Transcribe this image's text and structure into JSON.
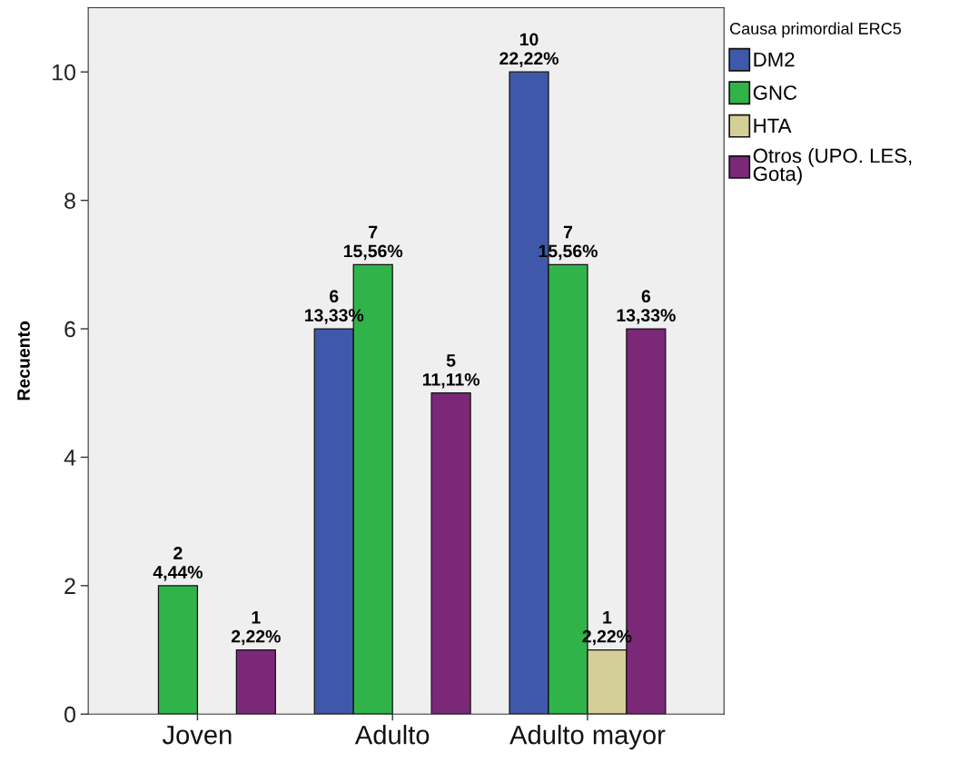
{
  "chart_data": {
    "type": "bar",
    "ylabel": "Recuento",
    "legend_title": "Causa primordial ERC5",
    "categories": [
      "Joven",
      "Adulto",
      "Adulto mayor"
    ],
    "series": [
      {
        "name": "DM2",
        "color": "#3f58a9",
        "values": [
          null,
          6,
          10
        ],
        "value_labels": [
          null,
          "6\n13,33%",
          "10\n22,22%"
        ]
      },
      {
        "name": "GNC",
        "color": "#30b44a",
        "values": [
          2,
          7,
          7
        ],
        "value_labels": [
          "2\n4,44%",
          "7\n15,56%",
          "7\n15,56%"
        ]
      },
      {
        "name": "HTA",
        "color": "#d4cf99",
        "values": [
          null,
          null,
          1
        ],
        "value_labels": [
          null,
          null,
          "1\n2,22%"
        ]
      },
      {
        "name": "Otros (UPO. LES, Gota)",
        "color": "#7b2878",
        "values": [
          1,
          5,
          6
        ],
        "value_labels": [
          "1\n2,22%",
          "5\n11,11%",
          "6\n13,33%"
        ]
      }
    ],
    "ylim": [
      0,
      11
    ],
    "yticks": [
      0,
      2,
      4,
      6,
      8,
      10
    ],
    "legend": "right"
  }
}
